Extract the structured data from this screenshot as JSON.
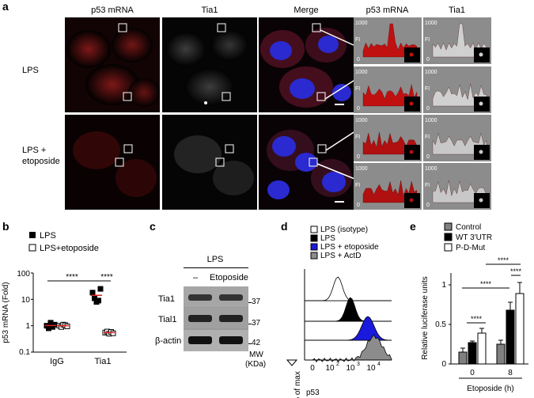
{
  "panel_a": {
    "letter": "a",
    "columns": [
      "p53 mRNA",
      "Tia1",
      "Merge",
      "p53 mRNA",
      "Tia1"
    ],
    "rows": [
      "LPS",
      "LPS +\netoposide"
    ],
    "row1_label": "LPS",
    "row2_label_line1": "LPS +",
    "row2_label_line2": "etoposide",
    "plot_ticks": [
      "1000",
      "FI",
      "0"
    ]
  },
  "panel_b": {
    "letter": "b",
    "legend": [
      "LPS",
      "LPS+etoposide"
    ],
    "ylabel": "p53 mRNA (Fold)",
    "yticks": [
      "100",
      "10",
      "1",
      "0.1"
    ],
    "xticks": [
      "IgG",
      "Tia1"
    ],
    "sig": [
      "****",
      "****"
    ]
  },
  "panel_c": {
    "letter": "c",
    "header": "LPS",
    "lanes": [
      "–",
      "Etoposide"
    ],
    "rows": [
      "Tia1",
      "Tial1",
      "β-actin"
    ],
    "mw": [
      "37",
      "37",
      "42"
    ],
    "mw_label_line1": "MW",
    "mw_label_line2": "(KDa)"
  },
  "panel_d": {
    "letter": "d",
    "legend": [
      "LPS (isotype)",
      "LPS",
      "LPS + etoposide",
      "LPS + ActD"
    ],
    "legend_colors": [
      "#ffffff",
      "#000000",
      "#1a1adc",
      "#8c8c8c"
    ],
    "ylabel": "% of max",
    "xlabel": "p53",
    "xticks": [
      "0",
      "10",
      "10",
      "10"
    ],
    "xtick_exps": [
      "",
      "2",
      "3",
      "4"
    ]
  },
  "panel_e": {
    "letter": "e",
    "legend": [
      "Control",
      "WT 3′UTR",
      "P-D-Mut"
    ],
    "legend_colors": [
      "#808080",
      "#000000",
      "#ffffff"
    ],
    "ylabel": "Relative luciferase units",
    "xlabel": "Etoposide (h)",
    "yticks": [
      "1",
      "0.5",
      "0"
    ],
    "xticks": [
      "0",
      "8"
    ],
    "sig": [
      "****",
      "****",
      "****",
      "****"
    ]
  },
  "chart_data": [
    {
      "type": "scatter",
      "panel": "b",
      "ylabel": "p53 mRNA (Fold)",
      "yscale": "log",
      "ylim": [
        0.1,
        100
      ],
      "categories": [
        "IgG",
        "Tia1"
      ],
      "series": [
        {
          "name": "LPS",
          "values": [
            [
              1.0,
              0.8,
              1.3,
              0.9,
              1.1
            ],
            [
              18,
              11,
              8,
              9,
              25
            ]
          ]
        },
        {
          "name": "LPS+etoposide",
          "values": [
            [
              1.0,
              0.9,
              1.1,
              1.05,
              0.95
            ],
            [
              0.55,
              0.6,
              0.5,
              0.58,
              0.52
            ]
          ]
        }
      ]
    },
    {
      "type": "bar",
      "panel": "e",
      "ylabel": "Relative luciferase units",
      "xlabel": "Etoposide (h)",
      "ylim": [
        0,
        1.1
      ],
      "categories": [
        "0",
        "8"
      ],
      "series": [
        {
          "name": "Control",
          "values": [
            0.15,
            0.25
          ]
        },
        {
          "name": "WT 3′UTR",
          "values": [
            0.27,
            0.68
          ]
        },
        {
          "name": "P-D-Mut",
          "values": [
            0.39,
            0.89
          ]
        }
      ]
    }
  ]
}
